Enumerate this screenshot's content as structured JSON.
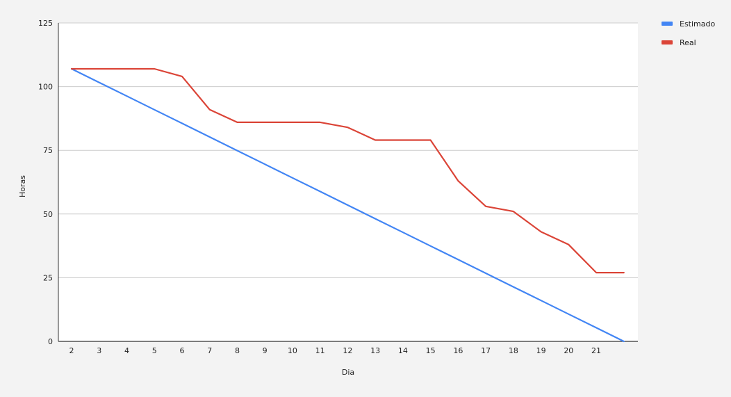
{
  "chart_data": {
    "type": "line",
    "title": "",
    "xlabel": "Dia",
    "ylabel": "Horas",
    "ylim": [
      0,
      125
    ],
    "yticks": [
      0,
      25,
      50,
      75,
      100,
      125
    ],
    "grid": "horizontal",
    "legend_position": "top-right",
    "categories": [
      "2",
      "3",
      "4",
      "5",
      "6",
      "7",
      "8",
      "9",
      "10",
      "11",
      "12",
      "13",
      "14",
      "15",
      "16",
      "17",
      "18",
      "19",
      "20",
      "21",
      ""
    ],
    "series": [
      {
        "name": "Estimado",
        "color": "#4285f4",
        "values": [
          107,
          101.65,
          96.3,
          90.95,
          85.6,
          80.25,
          74.9,
          69.55,
          64.2,
          58.85,
          53.5,
          48.15,
          42.8,
          37.45,
          32.1,
          26.75,
          21.4,
          16.05,
          10.7,
          5.35,
          0
        ]
      },
      {
        "name": "Real",
        "color": "#db4437",
        "values": [
          107,
          107,
          107,
          107,
          104,
          91,
          86,
          86,
          86,
          86,
          84,
          79,
          79,
          79,
          63,
          53,
          51,
          43,
          38,
          27,
          27
        ]
      }
    ]
  }
}
